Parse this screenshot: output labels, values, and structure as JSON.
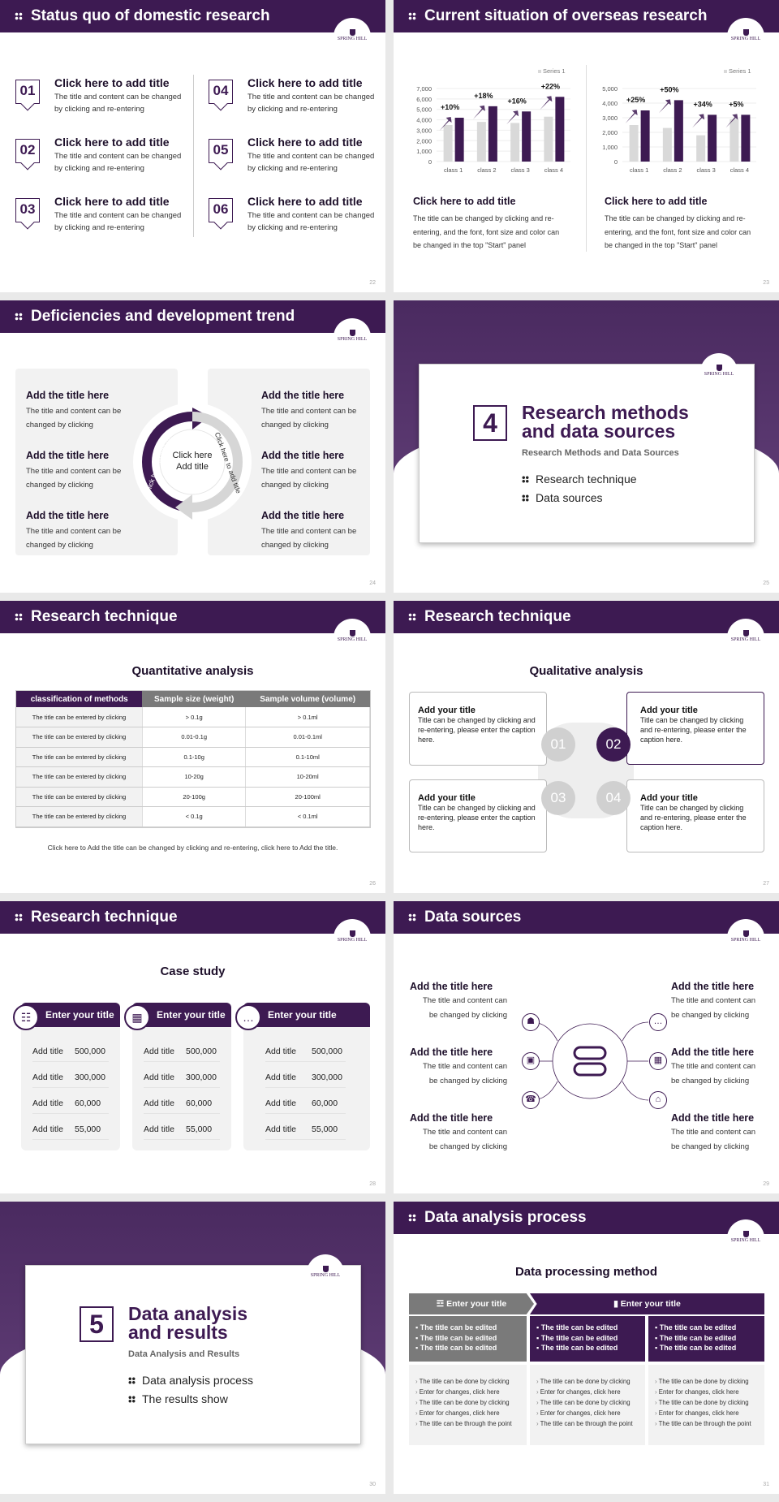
{
  "theme": {
    "accent": "#3d1a52",
    "gray": "#d9d9d9",
    "panel": "#f2f2f2"
  },
  "logo": "SPRING HILL COLLEGE",
  "s22": {
    "title": "Status quo of domestic research",
    "page": "22",
    "items": [
      {
        "num": "01",
        "title": "Click here to add title",
        "text": "The title and content can be changed by clicking and re-entering"
      },
      {
        "num": "02",
        "title": "Click here to add title",
        "text": "The title and content can be changed by clicking and re-entering"
      },
      {
        "num": "03",
        "title": "Click here to add title",
        "text": "The title and content can be changed by clicking and re-entering"
      },
      {
        "num": "04",
        "title": "Click here to add title",
        "text": "The title and content can be changed by clicking and re-entering"
      },
      {
        "num": "05",
        "title": "Click here to add title",
        "text": "The title and content can be changed by clicking and re-entering"
      },
      {
        "num": "06",
        "title": "Click here to add title",
        "text": "The title and content can be changed by clicking and re-entering"
      }
    ]
  },
  "s23": {
    "title": "Current situation of overseas research",
    "page": "23",
    "blocks": [
      {
        "title": "Click here to add title",
        "text": "The title can be changed by clicking and re-entering, and the font, font size and color can be changed in the top \"Start\" panel"
      },
      {
        "title": "Click here to add title",
        "text": "The title can be changed by clicking and re-entering, and the font, font size and color can be changed in the top \"Start\" panel"
      }
    ]
  },
  "chart_data": [
    {
      "type": "bar",
      "categories": [
        "class 1",
        "class 2",
        "class 3",
        "class 4"
      ],
      "ylim": [
        0,
        7000
      ],
      "yticks": [
        0,
        1000,
        2000,
        3000,
        4000,
        5000,
        6000,
        7000
      ],
      "legend": "top-right",
      "grid": true,
      "series": [
        {
          "name": "Series 1",
          "values": [
            3500,
            3800,
            3700,
            4300
          ],
          "color": "#d9d9d9"
        },
        {
          "values": [
            4200,
            5300,
            4800,
            6200
          ],
          "color": "#3d1a52"
        }
      ],
      "annotations": [
        "+10%",
        "+18%",
        "+16%",
        "+22%"
      ]
    },
    {
      "type": "bar",
      "categories": [
        "class 1",
        "class 2",
        "class 3",
        "class 4"
      ],
      "ylim": [
        0,
        5000
      ],
      "yticks": [
        0,
        1000,
        2000,
        3000,
        4000,
        5000
      ],
      "legend": "top-right",
      "grid": true,
      "series": [
        {
          "name": "Series 1",
          "values": [
            2500,
            2300,
            1800,
            2900
          ],
          "color": "#d9d9d9"
        },
        {
          "values": [
            3500,
            4200,
            3200,
            3200
          ],
          "color": "#3d1a52"
        }
      ],
      "annotations": [
        "+25%",
        "+50%",
        "+34%",
        "+5%"
      ]
    }
  ],
  "s24": {
    "title": "Deficiencies and development trend",
    "page": "24",
    "center": [
      "Click here",
      "Add title"
    ],
    "arc_left": "Click here to add title",
    "arc_right": "Click here to add title",
    "items": [
      {
        "title": "Add the title here",
        "text": [
          "The title and content can be",
          "changed by clicking"
        ]
      },
      {
        "title": "Add the title here",
        "text": [
          "The title and content can be",
          "changed by clicking"
        ]
      },
      {
        "title": "Add the title here",
        "text": [
          "The title and content can be",
          "changed by clicking"
        ]
      },
      {
        "title": "Add the title here",
        "text": [
          "The title and content can be",
          "changed by clicking"
        ]
      },
      {
        "title": "Add the title here",
        "text": [
          "The title and content can be",
          "changed by clicking"
        ]
      },
      {
        "title": "Add the title here",
        "text": [
          "The title and content can be",
          "changed by clicking"
        ]
      }
    ]
  },
  "s25": {
    "page": "25",
    "num": "4",
    "title": [
      "Research methods",
      "and data sources"
    ],
    "subtitle": "Research Methods and Data Sources",
    "items": [
      "Research technique",
      "Data sources"
    ]
  },
  "s26": {
    "title": "Research technique",
    "page": "26",
    "heading": "Quantitative analysis",
    "columns": [
      "classification of methods",
      "Sample size (weight)",
      "Sample volume (volume)"
    ],
    "rows": [
      [
        "The title can be entered by clicking",
        "> 0.1g",
        "> 0.1ml"
      ],
      [
        "The title can be entered by clicking",
        "0.01-0.1g",
        "0.01-0.1ml"
      ],
      [
        "The title can be entered by clicking",
        "0.1-10g",
        "0.1-10ml"
      ],
      [
        "The title can be entered by clicking",
        "10-20g",
        "10-20ml"
      ],
      [
        "The title can be entered by clicking",
        "20-100g",
        "20-100ml"
      ],
      [
        "The title can be entered by clicking",
        "< 0.1g",
        "< 0.1ml"
      ]
    ],
    "caption": "Click here to Add the title can be changed by clicking and re-entering, click here to Add the title."
  },
  "s27": {
    "title": "Research technique",
    "page": "27",
    "heading": "Qualitative analysis",
    "nums": [
      "01",
      "02",
      "03",
      "04"
    ],
    "boxes": [
      {
        "title": "Add your title",
        "text": "Title can be changed by clicking and re-entering, please enter the caption here."
      },
      {
        "title": "Add your title",
        "text": "Title can be changed by clicking and re-entering, please enter the caption here."
      },
      {
        "title": "Add your title",
        "text": "Title can be changed by clicking and re-entering, please enter the caption here."
      },
      {
        "title": "Add your title",
        "text": "Title can be changed by clicking and re-entering, please enter the caption here."
      }
    ]
  },
  "s28": {
    "title": "Research technique",
    "page": "28",
    "heading": "Case study",
    "cards": [
      {
        "icon": "contact-icon",
        "title": "Enter your title",
        "rows": [
          [
            "Add title",
            "500,000"
          ],
          [
            "Add title",
            "300,000"
          ],
          [
            "Add title",
            "60,000"
          ],
          [
            "Add title",
            "55,000"
          ]
        ]
      },
      {
        "icon": "qr-scan-icon",
        "title": "Enter your title",
        "rows": [
          [
            "Add title",
            "500,000"
          ],
          [
            "Add title",
            "300,000"
          ],
          [
            "Add title",
            "60,000"
          ],
          [
            "Add title",
            "55,000"
          ]
        ]
      },
      {
        "icon": "chat-icon",
        "title": "Enter your title",
        "rows": [
          [
            "Add title",
            "500,000"
          ],
          [
            "Add title",
            "300,000"
          ],
          [
            "Add title",
            "60,000"
          ],
          [
            "Add title",
            "55,000"
          ]
        ]
      }
    ]
  },
  "s29": {
    "title": "Data sources",
    "page": "29",
    "items": [
      {
        "title": "Add the title here",
        "text": [
          "The title and content can",
          "be changed by clicking"
        ]
      },
      {
        "title": "Add the title here",
        "text": [
          "The title and content can",
          "be changed by clicking"
        ]
      },
      {
        "title": "Add the title here",
        "text": [
          "The title and content can",
          "be changed by clicking"
        ]
      },
      {
        "title": "Add the title here",
        "text": [
          "The title and content can",
          "be changed by clicking"
        ]
      },
      {
        "title": "Add the title here",
        "text": [
          "The title and content can",
          "be changed by clicking"
        ]
      },
      {
        "title": "Add the title here",
        "text": [
          "The title and content can",
          "be changed by clicking"
        ]
      }
    ],
    "icons": [
      "gift-icon",
      "box-icon",
      "phone-icon",
      "chat-icon",
      "qr-icon",
      "house-icon"
    ],
    "center_icon": "server-icon"
  },
  "s30": {
    "page": "30",
    "num": "5",
    "title": [
      "Data analysis",
      "and results"
    ],
    "subtitle": "Data Analysis and Results",
    "items": [
      "Data analysis process",
      "The results show"
    ]
  },
  "s31": {
    "title": "Data analysis process",
    "page": "31",
    "heading": "Data processing method",
    "head_left": "Enter your title",
    "head_right": "Enter your title",
    "cols": [
      {
        "top": [
          "The title can be edited",
          "The title can be edited",
          "The title can be edited"
        ],
        "bottom": [
          "The title can be done by clicking",
          "Enter for changes, click here",
          "The title can be done by clicking",
          "Enter for changes, click here",
          "The title can be through the point"
        ]
      },
      {
        "top": [
          "The title can be edited",
          "The title can be edited",
          "The title can be edited"
        ],
        "bottom": [
          "The title can be done by clicking",
          "Enter for changes, click here",
          "The title can be done by clicking",
          "Enter for changes, click here",
          "The title can be through the point"
        ]
      },
      {
        "top": [
          "The title can be edited",
          "The title can be edited",
          "The title can be edited"
        ],
        "bottom": [
          "The title can be done by clicking",
          "Enter for changes, click here",
          "The title can be done by clicking",
          "Enter for changes, click here",
          "The title can be through the point"
        ]
      }
    ]
  }
}
